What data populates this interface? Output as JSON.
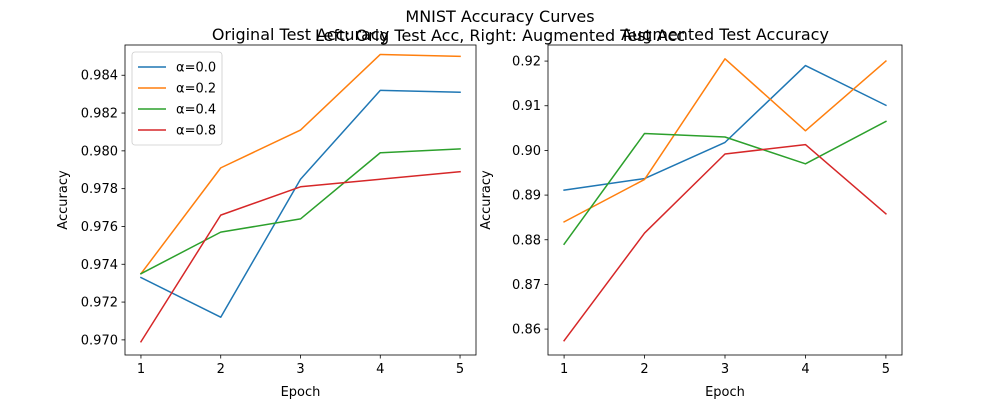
{
  "figure": {
    "suptitle": "MNIST Accuracy Curves",
    "subtitle": "Left: Orig Test Acc, Right: Augmented Test Acc"
  },
  "series_colors": [
    "#1f77b4",
    "#ff7f0e",
    "#2ca02c",
    "#d62728"
  ],
  "chart_data": [
    {
      "type": "line",
      "title": "Original Test Accuracy",
      "xlabel": "Epoch",
      "ylabel": "Accuracy",
      "x": [
        1,
        2,
        3,
        4,
        5
      ],
      "xlim": [
        0.8,
        5.2
      ],
      "ylim": [
        0.9692,
        0.9856
      ],
      "xticks": [
        "1",
        "2",
        "3",
        "4",
        "5"
      ],
      "yticks": [
        "0.970",
        "0.972",
        "0.974",
        "0.976",
        "0.978",
        "0.980",
        "0.982",
        "0.984"
      ],
      "ytick_values": [
        0.97,
        0.972,
        0.974,
        0.976,
        0.978,
        0.98,
        0.982,
        0.984
      ],
      "grid": false,
      "legend_position": "top-left",
      "series": [
        {
          "name": "α=0.0",
          "values": [
            0.9733,
            0.9712,
            0.9785,
            0.9832,
            0.9831
          ]
        },
        {
          "name": "α=0.2",
          "values": [
            0.9735,
            0.9791,
            0.9811,
            0.9851,
            0.985
          ]
        },
        {
          "name": "α=0.4",
          "values": [
            0.9735,
            0.9757,
            0.9764,
            0.9799,
            0.9801
          ]
        },
        {
          "name": "α=0.8",
          "values": [
            0.9699,
            0.9766,
            0.9781,
            0.9785,
            0.9789
          ]
        }
      ]
    },
    {
      "type": "line",
      "title": "Augmented Test Accuracy",
      "xlabel": "Epoch",
      "ylabel": "Accuracy",
      "x": [
        1,
        2,
        3,
        4,
        5
      ],
      "xlim": [
        0.8,
        5.2
      ],
      "ylim": [
        0.8542,
        0.9236
      ],
      "xticks": [
        "1",
        "2",
        "3",
        "4",
        "5"
      ],
      "yticks": [
        "0.86",
        "0.87",
        "0.88",
        "0.89",
        "0.90",
        "0.91",
        "0.92"
      ],
      "ytick_values": [
        0.86,
        0.87,
        0.88,
        0.89,
        0.9,
        0.91,
        0.92
      ],
      "grid": false,
      "legend_position": "none",
      "series": [
        {
          "name": "α=0.0",
          "values": [
            0.8911,
            0.8937,
            0.9018,
            0.919,
            0.9101
          ]
        },
        {
          "name": "α=0.2",
          "values": [
            0.884,
            0.8935,
            0.9205,
            0.9044,
            0.92
          ]
        },
        {
          "name": "α=0.4",
          "values": [
            0.879,
            0.9038,
            0.903,
            0.897,
            0.9065
          ]
        },
        {
          "name": "α=0.8",
          "values": [
            0.8574,
            0.8815,
            0.8992,
            0.9013,
            0.8858
          ]
        }
      ]
    }
  ]
}
